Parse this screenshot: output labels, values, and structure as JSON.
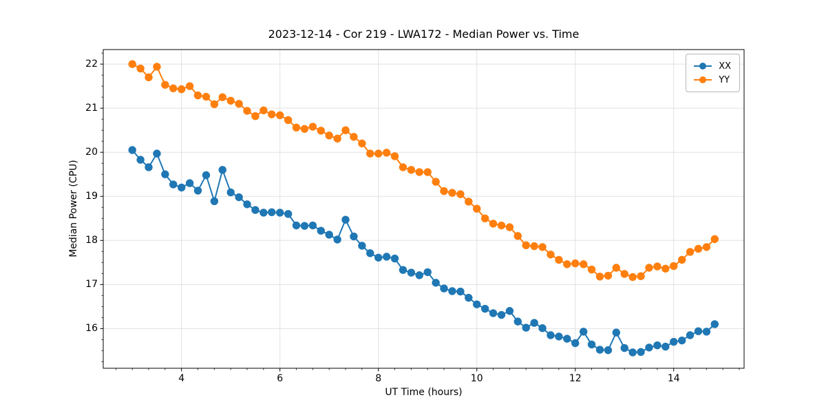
{
  "figure": {
    "title": "2023-12-14 - Cor 219 - LWA172 - Median Power vs. Time",
    "xlabel": "UT Time (hours)",
    "ylabel": "Median Power (CPU)"
  },
  "chart_data": {
    "type": "line",
    "title": "2023-12-14 - Cor 219 - LWA172 - Median Power vs. Time",
    "xlabel": "UT Time (hours)",
    "ylabel": "Median Power (CPU)",
    "axes": {
      "xlim": [
        2.41,
        15.43
      ],
      "ylim": [
        15.1,
        22.33
      ],
      "xticks": [
        4,
        6,
        8,
        10,
        12,
        14
      ],
      "yticks": [
        16,
        17,
        18,
        19,
        20,
        21,
        22
      ],
      "minor_x_step": 0.3333,
      "minor_y_step": 0.25,
      "grid": true,
      "grid_color": "#e1e1e1",
      "spine_color": "#000000",
      "legend_position": "upper right"
    },
    "x": [
      3.0,
      3.167,
      3.333,
      3.5,
      3.667,
      3.833,
      4.0,
      4.167,
      4.333,
      4.5,
      4.667,
      4.833,
      5.0,
      5.167,
      5.333,
      5.5,
      5.667,
      5.833,
      6.0,
      6.167,
      6.333,
      6.5,
      6.667,
      6.833,
      7.0,
      7.167,
      7.333,
      7.5,
      7.667,
      7.833,
      8.0,
      8.167,
      8.333,
      8.5,
      8.667,
      8.833,
      9.0,
      9.167,
      9.333,
      9.5,
      9.667,
      9.833,
      10.0,
      10.167,
      10.333,
      10.5,
      10.667,
      10.833,
      11.0,
      11.167,
      11.333,
      11.5,
      11.667,
      11.833,
      12.0,
      12.167,
      12.333,
      12.5,
      12.667,
      12.833,
      13.0,
      13.167,
      13.333,
      13.5,
      13.667,
      13.833,
      14.0,
      14.167,
      14.333,
      14.5,
      14.667,
      14.833
    ],
    "series": [
      {
        "name": "XX",
        "color": "#1f77b4",
        "values": [
          20.05,
          19.83,
          19.66,
          19.97,
          19.5,
          19.27,
          19.2,
          19.3,
          19.13,
          19.48,
          18.89,
          19.6,
          19.09,
          18.98,
          18.82,
          18.69,
          18.63,
          18.64,
          18.63,
          18.6,
          18.34,
          18.33,
          18.34,
          18.22,
          18.13,
          18.02,
          18.47,
          18.09,
          17.88,
          17.71,
          17.61,
          17.63,
          17.59,
          17.33,
          17.27,
          17.21,
          17.28,
          17.04,
          16.91,
          16.85,
          16.84,
          16.7,
          16.55,
          16.45,
          16.35,
          16.31,
          16.4,
          16.16,
          16.02,
          16.13,
          16.01,
          15.85,
          15.82,
          15.77,
          15.67,
          15.93,
          15.64,
          15.52,
          15.51,
          15.91,
          15.56,
          15.46,
          15.47,
          15.57,
          15.62,
          15.59,
          15.7,
          15.73,
          15.85,
          15.94,
          15.93,
          16.1
        ]
      },
      {
        "name": "YY",
        "color": "#ff7f0e",
        "values": [
          22.0,
          21.9,
          21.7,
          21.94,
          21.53,
          21.45,
          21.43,
          21.5,
          21.29,
          21.26,
          21.09,
          21.25,
          21.17,
          21.1,
          20.94,
          20.82,
          20.95,
          20.86,
          20.84,
          20.73,
          20.56,
          20.53,
          20.58,
          20.49,
          20.38,
          20.31,
          20.5,
          20.35,
          20.2,
          19.97,
          19.97,
          19.99,
          19.91,
          19.66,
          19.6,
          19.55,
          19.55,
          19.33,
          19.12,
          19.08,
          19.05,
          18.88,
          18.72,
          18.5,
          18.38,
          18.34,
          18.3,
          18.1,
          17.89,
          17.87,
          17.85,
          17.68,
          17.56,
          17.46,
          17.48,
          17.46,
          17.34,
          17.18,
          17.2,
          17.38,
          17.24,
          17.17,
          17.19,
          17.38,
          17.41,
          17.36,
          17.42,
          17.56,
          17.74,
          17.81,
          17.85,
          18.03
        ]
      }
    ]
  }
}
